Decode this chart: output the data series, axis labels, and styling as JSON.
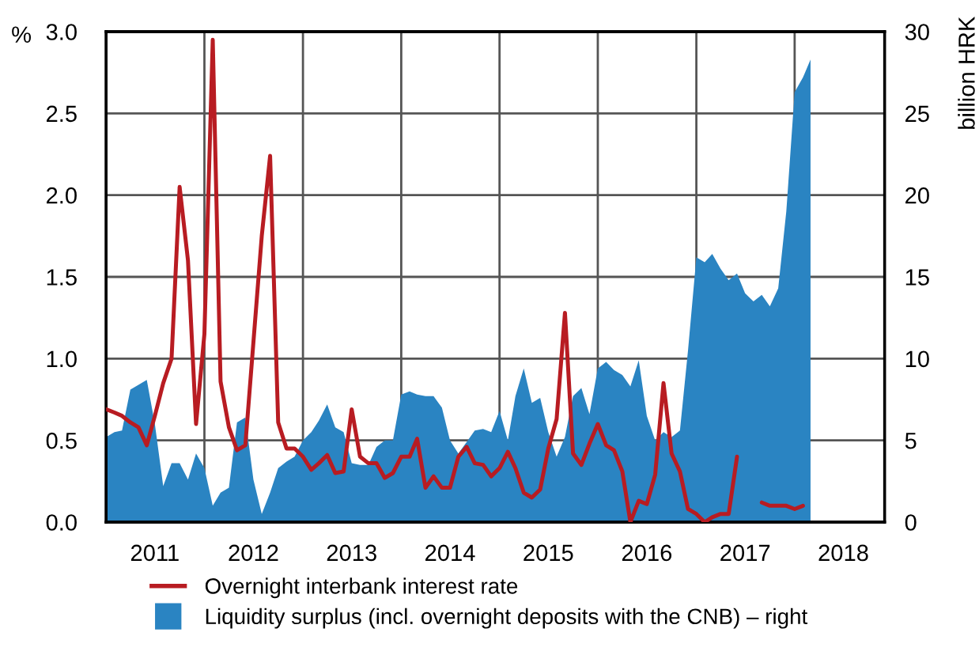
{
  "chart_data": {
    "type": "line",
    "ylabel": "%",
    "y2label": "billion HRK",
    "x": [
      "2011-01",
      "2011-02",
      "2011-03",
      "2011-04",
      "2011-05",
      "2011-06",
      "2011-07",
      "2011-08",
      "2011-09",
      "2011-10",
      "2011-11",
      "2011-12",
      "2012-01",
      "2012-02",
      "2012-03",
      "2012-04",
      "2012-05",
      "2012-06",
      "2012-07",
      "2012-08",
      "2012-09",
      "2012-10",
      "2012-11",
      "2012-12",
      "2013-01",
      "2013-02",
      "2013-03",
      "2013-04",
      "2013-05",
      "2013-06",
      "2013-07",
      "2013-08",
      "2013-09",
      "2013-10",
      "2013-11",
      "2013-12",
      "2014-01",
      "2014-02",
      "2014-03",
      "2014-04",
      "2014-05",
      "2014-06",
      "2014-07",
      "2014-08",
      "2014-09",
      "2014-10",
      "2014-11",
      "2014-12",
      "2015-01",
      "2015-02",
      "2015-03",
      "2015-04",
      "2015-05",
      "2015-06",
      "2015-07",
      "2015-08",
      "2015-09",
      "2015-10",
      "2015-11",
      "2015-12",
      "2016-01",
      "2016-02",
      "2016-03",
      "2016-04",
      "2016-05",
      "2016-06",
      "2016-07",
      "2016-08",
      "2016-09",
      "2016-10",
      "2016-11",
      "2016-12",
      "2017-01",
      "2017-02",
      "2017-03",
      "2017-04",
      "2017-05",
      "2017-06",
      "2017-07",
      "2017-08",
      "2017-09",
      "2017-10",
      "2017-11",
      "2017-12",
      "2018-01",
      "2018-02",
      "2018-03"
    ],
    "series": [
      {
        "name": "Overnight interbank interest rate",
        "color": "#b81c22",
        "values": [
          0.69,
          0.67,
          0.65,
          0.61,
          0.58,
          0.47,
          0.65,
          0.85,
          1.0,
          2.05,
          1.6,
          0.6,
          1.15,
          2.95,
          0.86,
          0.58,
          0.44,
          0.47,
          1.1,
          1.75,
          2.24,
          0.61,
          0.45,
          0.45,
          0.4,
          0.32,
          0.36,
          0.41,
          0.3,
          0.31,
          0.69,
          0.4,
          0.36,
          0.36,
          0.27,
          0.3,
          0.4,
          0.4,
          0.51,
          0.21,
          0.28,
          0.21,
          0.21,
          0.4,
          0.46,
          0.36,
          0.35,
          0.28,
          0.33,
          0.43,
          0.33,
          0.18,
          0.15,
          0.2,
          0.45,
          0.63,
          1.28,
          0.42,
          0.35,
          0.48,
          0.6,
          0.47,
          0.44,
          0.31,
          0.0,
          0.13,
          0.11,
          0.29,
          0.85,
          0.42,
          0.31,
          0.08,
          0.05,
          0.0,
          0.03,
          0.05,
          0.05,
          0.4,
          null,
          null,
          0.12,
          0.1,
          0.1,
          0.1,
          0.08,
          0.1,
          null
        ]
      },
      {
        "name": "Liquidity surplus (incl. overnight deposits with the CNB) – right",
        "type": "area",
        "axis": "y2",
        "color": "#2a84c2",
        "values": [
          5.2,
          5.5,
          5.6,
          8.1,
          8.4,
          8.7,
          6.0,
          2.2,
          3.6,
          3.6,
          2.6,
          4.2,
          3.3,
          1.0,
          1.8,
          2.1,
          6.1,
          6.4,
          2.6,
          0.5,
          1.8,
          3.3,
          3.7,
          4.0,
          5.0,
          5.5,
          6.2,
          7.2,
          5.8,
          5.5,
          3.6,
          3.5,
          3.5,
          4.6,
          5.0,
          5.0,
          7.8,
          8.0,
          7.8,
          7.7,
          7.7,
          7.0,
          5.0,
          4.2,
          4.9,
          5.6,
          5.7,
          5.5,
          6.8,
          5.0,
          7.7,
          9.4,
          7.3,
          7.6,
          5.5,
          4.0,
          5.2,
          7.7,
          8.2,
          6.6,
          9.4,
          9.8,
          9.3,
          9.0,
          8.3,
          9.9,
          6.5,
          5.0,
          5.5,
          5.2,
          5.6,
          10.5,
          16.2,
          15.9,
          16.4,
          15.5,
          14.8,
          15.2,
          14.0,
          13.5,
          13.9,
          13.2,
          14.3,
          19.0,
          26.3,
          27.2,
          28.3
        ]
      }
    ],
    "xlim": [
      "2011-01-01",
      "2018-12-01"
    ],
    "xticks": [
      {
        "value": "2011-07-01",
        "label": "2011"
      },
      {
        "value": "2012-01-01",
        "label": null
      },
      {
        "value": "2012-07-01",
        "label": "2012"
      },
      {
        "value": "2013-01-01",
        "label": null
      },
      {
        "value": "2013-07-01",
        "label": "2013"
      },
      {
        "value": "2014-01-01",
        "label": null
      },
      {
        "value": "2014-07-01",
        "label": "2014"
      },
      {
        "value": "2015-01-01",
        "label": null
      },
      {
        "value": "2015-07-01",
        "label": "2015"
      },
      {
        "value": "2016-01-01",
        "label": null
      },
      {
        "value": "2016-07-01",
        "label": "2016"
      },
      {
        "value": "2017-01-01",
        "label": null
      },
      {
        "value": "2017-07-01",
        "label": "2017"
      },
      {
        "value": "2018-01-01",
        "label": null
      },
      {
        "value": "2018-07-01",
        "label": "2018"
      }
    ],
    "ylim": [
      0,
      3
    ],
    "yticks": [
      {
        "value": 0,
        "label": "0.0"
      },
      0.5,
      {
        "value": 1,
        "label": "1.0"
      },
      1.5,
      {
        "value": 2,
        "label": "2.0"
      },
      2.5,
      {
        "value": 3,
        "label": "3.0"
      }
    ],
    "y2lim": [
      0,
      30
    ],
    "y2ticks": [
      0,
      5,
      10,
      15,
      20,
      25,
      30
    ],
    "grid": true,
    "legend": "bottom"
  }
}
